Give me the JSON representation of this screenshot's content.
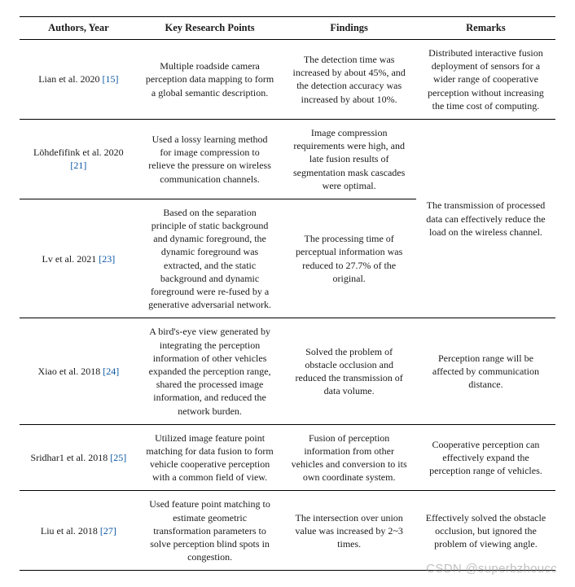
{
  "headers": {
    "authors": "Authors, Year",
    "key": "Key Research Points",
    "findings": "Findings",
    "remarks": "Remarks"
  },
  "rows": [
    {
      "author_text": "Lian et al. 2020 ",
      "ref": "[15]",
      "key": "Multiple roadside camera perception data mapping to form a global semantic description.",
      "findings": "The detection time was increased by about 45%, and the detection accuracy was increased by about 10%.",
      "remarks": "Distributed interactive fusion deployment of sensors for a wider range of cooperative perception without increasing the time cost of computing.",
      "remarks_rowspan": 1
    },
    {
      "author_text": "Löhdefifink et al. 2020 ",
      "ref": "[21]",
      "key": "Used a lossy learning method for image compression to relieve the pressure on wireless communication channels.",
      "findings": "Image compression requirements were high, and late fusion results of segmentation mask cascades were optimal.",
      "remarks": "The transmission of processed data can effectively reduce the load on the wireless channel.",
      "remarks_rowspan": 2
    },
    {
      "author_text": "Lv et al. 2021 ",
      "ref": "[23]",
      "key": "Based on the separation principle of static background and dynamic foreground, the dynamic foreground was extracted, and the static background and dynamic foreground were re-fused by a generative adversarial network.",
      "findings": "The processing time of perceptual information was reduced to 27.7% of the original.",
      "remarks": null,
      "remarks_rowspan": 0
    },
    {
      "author_text": "Xiao et al. 2018 ",
      "ref": "[24]",
      "key": "A bird's-eye view generated by integrating the perception information of other vehicles expanded the perception range, shared the processed image information, and reduced the network burden.",
      "findings": "Solved the problem of obstacle occlusion and reduced the transmission of data volume.",
      "remarks": "Perception range will be affected by communication distance.",
      "remarks_rowspan": 1
    },
    {
      "author_text": "Sridhar1 et al. 2018 ",
      "ref": "[25]",
      "key": "Utilized image feature point matching for data fusion to form vehicle cooperative perception with a common field of view.",
      "findings": "Fusion of perception information from other vehicles and conversion to its own coordinate system.",
      "remarks": "Cooperative perception can effectively expand the perception range of vehicles.",
      "remarks_rowspan": 1
    },
    {
      "author_text": "Liu et al. 2018 ",
      "ref": "[27]",
      "key": "Used feature point matching to estimate geometric transformation parameters to solve perception blind spots in congestion.",
      "findings": "The intersection over union value was increased by 2~3 times.",
      "remarks": "Effectively solved the obstacle occlusion, but ignored the problem of viewing angle.",
      "remarks_rowspan": 1
    }
  ],
  "watermark": "CSDN @superbzhoucc",
  "styling": {
    "font_family": "Palatino Linotype",
    "base_fontsize_pt": 12,
    "ref_color": "#0b57a4",
    "text_color": "#1a1a1a",
    "border_color": "#000000",
    "background_color": "#ffffff",
    "column_widths_pct": [
      22,
      27,
      25,
      26
    ],
    "watermark_color": "rgba(140,140,140,0.55)"
  }
}
